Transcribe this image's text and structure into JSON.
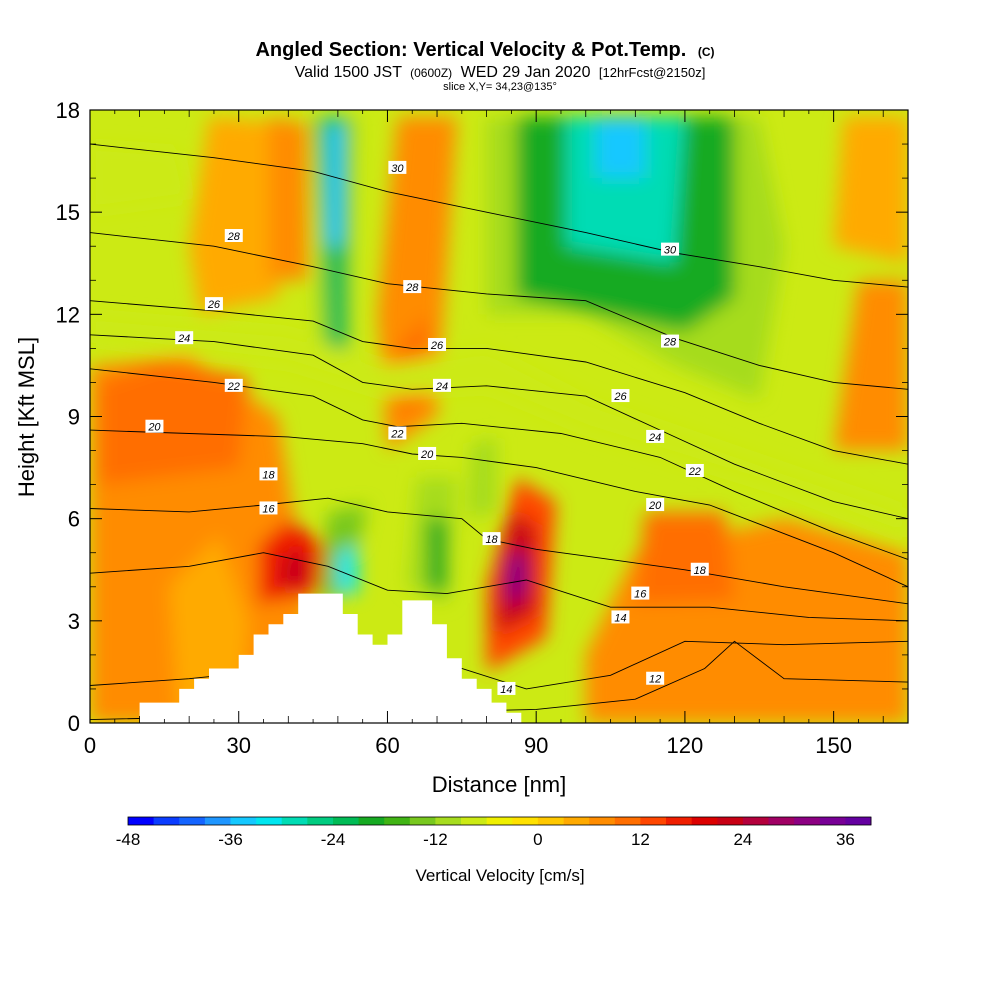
{
  "title": "Angled Section: Vertical Velocity & Pot.Temp.",
  "title_mark": "(C)",
  "subtitle_parts": [
    "Valid 1500 JST",
    "(0600Z)",
    "WED 29 Jan 2020",
    "[12hrFcst@2150z]"
  ],
  "slice_label": "slice X,Y= 34,23@135°",
  "chart_data": {
    "type": "heatmap",
    "title": "Angled Section: Vertical Velocity & Pot.Temp.",
    "xlabel": "Distance [nm]",
    "ylabel": "Height [Kft MSL]",
    "xlim": [
      0,
      165
    ],
    "ylim": [
      0,
      18
    ],
    "x_ticks": [
      0,
      30,
      60,
      90,
      120,
      150
    ],
    "y_ticks": [
      0,
      3,
      6,
      9,
      12,
      15,
      18
    ],
    "colorbar": {
      "label": "Vertical Velocity [cm/s]",
      "levels": [
        -48,
        -45,
        -42,
        -39,
        -36,
        -33,
        -30,
        -27,
        -24,
        -21,
        -18,
        -15,
        -12,
        -9,
        -6,
        -3,
        0,
        3,
        6,
        9,
        12,
        15,
        18,
        21,
        24,
        27,
        30,
        33,
        36,
        39
      ],
      "tick_labels": [
        -48,
        -36,
        -24,
        -12,
        0,
        12,
        24,
        36
      ],
      "colors": [
        "#0000ff",
        "#0a3cff",
        "#1464ff",
        "#1e96ff",
        "#14c8ff",
        "#00e6f0",
        "#00dcb4",
        "#00cc80",
        "#00bb55",
        "#16aa22",
        "#40b414",
        "#78c81e",
        "#a6dc1e",
        "#ccea14",
        "#f0f000",
        "#ffe100",
        "#ffc800",
        "#ffaa00",
        "#ff8c00",
        "#ff6e00",
        "#ff4600",
        "#f01e00",
        "#dc0000",
        "#c80014",
        "#b4003c",
        "#a00064",
        "#8c0082",
        "#780096",
        "#6400a0"
      ]
    },
    "terrain": [
      {
        "x": 10,
        "h": 0.6
      },
      {
        "x": 18,
        "h": 1.0
      },
      {
        "x": 21,
        "h": 1.3
      },
      {
        "x": 24,
        "h": 1.6
      },
      {
        "x": 30,
        "h": 2.0
      },
      {
        "x": 33,
        "h": 2.6
      },
      {
        "x": 36,
        "h": 2.9
      },
      {
        "x": 39,
        "h": 3.2
      },
      {
        "x": 42,
        "h": 3.8
      },
      {
        "x": 51,
        "h": 3.2
      },
      {
        "x": 54,
        "h": 2.6
      },
      {
        "x": 57,
        "h": 2.3
      },
      {
        "x": 60,
        "h": 2.6
      },
      {
        "x": 63,
        "h": 3.6
      },
      {
        "x": 69,
        "h": 2.9
      },
      {
        "x": 72,
        "h": 1.9
      },
      {
        "x": 75,
        "h": 1.3
      },
      {
        "x": 78,
        "h": 1.0
      },
      {
        "x": 81,
        "h": 0.6
      },
      {
        "x": 84,
        "h": 0.3
      },
      {
        "x": 87,
        "h": 0
      }
    ],
    "theta_contours": [
      {
        "theta": 12,
        "points": [
          [
            0,
            0.1
          ],
          [
            30,
            0.2
          ],
          [
            60,
            0.3
          ],
          [
            90,
            0.4
          ],
          [
            110,
            0.7
          ],
          [
            124,
            1.6
          ],
          [
            130,
            2.4
          ],
          [
            140,
            1.3
          ],
          [
            165,
            1.2
          ]
        ]
      },
      {
        "theta": 14,
        "points": [
          [
            0,
            1.1
          ],
          [
            20,
            1.3
          ],
          [
            40,
            1.6
          ],
          [
            60,
            1.9
          ],
          [
            75,
            1.6
          ],
          [
            88,
            1.0
          ],
          [
            105,
            1.4
          ],
          [
            120,
            2.4
          ],
          [
            140,
            2.3
          ],
          [
            165,
            2.4
          ]
        ]
      },
      {
        "theta": 16,
        "points": [
          [
            0,
            4.4
          ],
          [
            20,
            4.6
          ],
          [
            35,
            5.0
          ],
          [
            48,
            4.6
          ],
          [
            60,
            3.9
          ],
          [
            72,
            3.8
          ],
          [
            88,
            4.2
          ],
          [
            105,
            3.4
          ],
          [
            125,
            3.4
          ],
          [
            145,
            3.1
          ],
          [
            165,
            3.0
          ]
        ]
      },
      {
        "theta": 18,
        "points": [
          [
            0,
            6.3
          ],
          [
            20,
            6.2
          ],
          [
            35,
            6.4
          ],
          [
            48,
            6.6
          ],
          [
            60,
            6.2
          ],
          [
            75,
            6.0
          ],
          [
            80,
            5.4
          ],
          [
            90,
            5.1
          ],
          [
            100,
            4.9
          ],
          [
            120,
            4.5
          ],
          [
            140,
            4.0
          ],
          [
            165,
            3.5
          ]
        ]
      },
      {
        "theta": 20,
        "points": [
          [
            0,
            8.6
          ],
          [
            20,
            8.5
          ],
          [
            40,
            8.4
          ],
          [
            55,
            8.2
          ],
          [
            65,
            7.9
          ],
          [
            75,
            7.8
          ],
          [
            90,
            7.5
          ],
          [
            110,
            6.8
          ],
          [
            125,
            6.4
          ],
          [
            150,
            5.0
          ],
          [
            165,
            4.0
          ]
        ]
      },
      {
        "theta": 22,
        "points": [
          [
            0,
            10.4
          ],
          [
            25,
            10.0
          ],
          [
            45,
            9.6
          ],
          [
            55,
            8.9
          ],
          [
            62,
            8.7
          ],
          [
            75,
            8.8
          ],
          [
            95,
            8.5
          ],
          [
            115,
            7.8
          ],
          [
            130,
            6.8
          ],
          [
            150,
            5.6
          ],
          [
            165,
            4.8
          ]
        ]
      },
      {
        "theta": 24,
        "points": [
          [
            0,
            11.4
          ],
          [
            25,
            11.2
          ],
          [
            45,
            10.8
          ],
          [
            55,
            10.0
          ],
          [
            65,
            9.8
          ],
          [
            80,
            9.9
          ],
          [
            100,
            9.6
          ],
          [
            115,
            8.6
          ],
          [
            130,
            7.6
          ],
          [
            150,
            6.5
          ],
          [
            165,
            6.0
          ]
        ]
      },
      {
        "theta": 26,
        "points": [
          [
            0,
            12.4
          ],
          [
            25,
            12.1
          ],
          [
            45,
            11.8
          ],
          [
            55,
            11.2
          ],
          [
            65,
            11.0
          ],
          [
            80,
            11.0
          ],
          [
            100,
            10.6
          ],
          [
            120,
            9.7
          ],
          [
            135,
            8.8
          ],
          [
            150,
            8.0
          ],
          [
            165,
            7.6
          ]
        ]
      },
      {
        "theta": 28,
        "points": [
          [
            0,
            14.4
          ],
          [
            25,
            14.0
          ],
          [
            45,
            13.4
          ],
          [
            60,
            12.9
          ],
          [
            80,
            12.6
          ],
          [
            100,
            12.4
          ],
          [
            118,
            11.3
          ],
          [
            135,
            10.5
          ],
          [
            150,
            10.0
          ],
          [
            165,
            9.8
          ]
        ]
      },
      {
        "theta": 30,
        "points": [
          [
            0,
            17.0
          ],
          [
            25,
            16.6
          ],
          [
            45,
            16.2
          ],
          [
            60,
            15.6
          ],
          [
            80,
            15.0
          ],
          [
            100,
            14.4
          ],
          [
            118,
            13.8
          ],
          [
            135,
            13.4
          ],
          [
            150,
            13.0
          ],
          [
            165,
            12.8
          ]
        ]
      }
    ],
    "contour_labels": [
      {
        "text": "30",
        "x": 62,
        "y": 16.3
      },
      {
        "text": "28",
        "x": 29,
        "y": 14.3
      },
      {
        "text": "30",
        "x": 117,
        "y": 13.9
      },
      {
        "text": "28",
        "x": 65,
        "y": 12.8
      },
      {
        "text": "26",
        "x": 25,
        "y": 12.3
      },
      {
        "text": "24",
        "x": 19,
        "y": 11.3
      },
      {
        "text": "28",
        "x": 117,
        "y": 11.2
      },
      {
        "text": "26",
        "x": 70,
        "y": 11.1
      },
      {
        "text": "24",
        "x": 71,
        "y": 9.9
      },
      {
        "text": "22",
        "x": 29,
        "y": 9.9
      },
      {
        "text": "26",
        "x": 107,
        "y": 9.6
      },
      {
        "text": "20",
        "x": 13,
        "y": 8.7
      },
      {
        "text": "22",
        "x": 62,
        "y": 8.5
      },
      {
        "text": "24",
        "x": 114,
        "y": 8.4
      },
      {
        "text": "20",
        "x": 68,
        "y": 7.9
      },
      {
        "text": "22",
        "x": 122,
        "y": 7.4
      },
      {
        "text": "18",
        "x": 36,
        "y": 7.3
      },
      {
        "text": "16",
        "x": 36,
        "y": 6.3
      },
      {
        "text": "20",
        "x": 114,
        "y": 6.4
      },
      {
        "text": "18",
        "x": 81,
        "y": 5.4
      },
      {
        "text": "18",
        "x": 123,
        "y": 4.5
      },
      {
        "text": "16",
        "x": 111,
        "y": 3.8
      },
      {
        "text": "14",
        "x": 107,
        "y": 3.1
      },
      {
        "text": "12",
        "x": 114,
        "y": 1.3
      },
      {
        "text": "14",
        "x": 84,
        "y": 1.0
      }
    ]
  }
}
